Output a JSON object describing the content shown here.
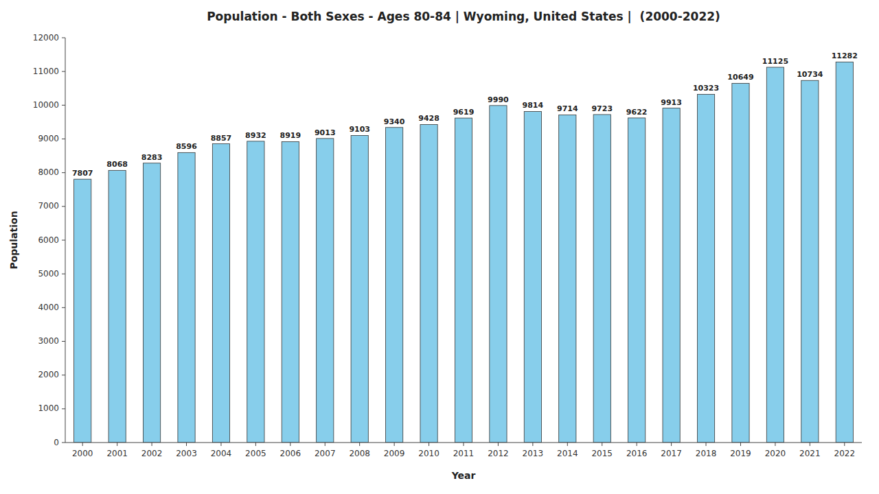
{
  "chart_data": {
    "type": "bar",
    "title": "Population - Both Sexes - Ages 80-84 | Wyoming, United States |  (2000-2022)",
    "x_label": "Year",
    "y_label": "Population",
    "categories": [
      "2000",
      "2001",
      "2002",
      "2003",
      "2004",
      "2005",
      "2006",
      "2007",
      "2008",
      "2009",
      "2010",
      "2011",
      "2012",
      "2013",
      "2014",
      "2015",
      "2016",
      "2017",
      "2018",
      "2019",
      "2020",
      "2021",
      "2022"
    ],
    "values": [
      7807,
      8068,
      8283,
      8596,
      8857,
      8932,
      8919,
      9013,
      9103,
      9340,
      9428,
      9619,
      9990,
      9814,
      9714,
      9723,
      9622,
      9913,
      10323,
      10649,
      11125,
      10734,
      11282
    ],
    "color": "#87CEEB",
    "ylim": [
      0,
      12000
    ],
    "yticks": [
      0,
      1000,
      2000,
      3000,
      4000,
      5000,
      6000,
      7000,
      8000,
      9000,
      10000,
      11000,
      12000
    ],
    "grid": false,
    "data_labels": true
  }
}
